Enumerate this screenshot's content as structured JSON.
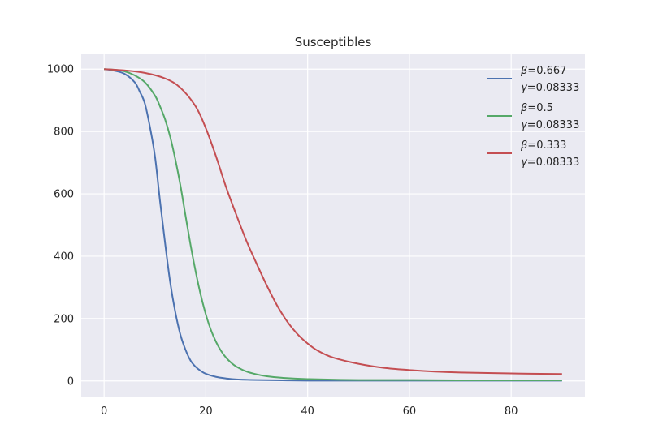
{
  "chart_data": {
    "type": "line",
    "title": "Susceptibles",
    "xlabel": "",
    "ylabel": "",
    "xlim": [
      -4.5,
      94.5
    ],
    "ylim": [
      -50,
      1050
    ],
    "xticks": [
      0,
      20,
      40,
      60,
      80
    ],
    "yticks": [
      0,
      200,
      400,
      600,
      800,
      1000
    ],
    "grid": true,
    "legend_position": "top-right",
    "background": "#EAEAF2",
    "series": [
      {
        "beta": "0.667",
        "gamma": "0.08333",
        "color": "#4C72B0",
        "x": [
          0,
          2,
          4,
          6,
          7,
          8,
          9,
          10,
          11,
          12,
          13,
          14,
          15,
          16,
          17,
          18,
          19,
          20,
          22,
          24,
          26,
          30,
          35,
          40,
          50,
          60,
          70,
          80,
          90
        ],
        "y": [
          1000,
          995,
          985,
          958,
          928,
          890,
          815,
          720,
          575,
          440,
          315,
          220,
          148,
          100,
          65,
          45,
          32,
          23,
          13,
          8,
          5,
          3,
          2,
          1,
          1,
          1,
          1,
          1,
          1
        ]
      },
      {
        "beta": "0.5",
        "gamma": "0.08333",
        "color": "#55A868",
        "x": [
          0,
          2,
          4,
          6,
          8,
          10,
          11,
          12,
          13,
          14,
          15,
          16,
          17,
          18,
          19,
          20,
          21,
          22,
          23,
          24,
          25,
          26,
          28,
          30,
          32,
          35,
          40,
          50,
          60,
          70,
          80,
          90
        ],
        "y": [
          1000,
          998,
          993,
          980,
          958,
          915,
          880,
          838,
          782,
          710,
          627,
          530,
          435,
          350,
          275,
          213,
          163,
          125,
          96,
          74,
          58,
          46,
          30,
          21,
          15,
          10,
          6,
          3,
          3,
          2,
          2,
          2
        ]
      },
      {
        "beta": "0.333",
        "gamma": "0.08333",
        "color": "#C44E52",
        "x": [
          0,
          4,
          8,
          12,
          15,
          18,
          20,
          22,
          24,
          26,
          28,
          30,
          32,
          34,
          36,
          38,
          40,
          42,
          45,
          50,
          55,
          60,
          65,
          70,
          80,
          90
        ],
        "y": [
          1000,
          996,
          988,
          970,
          940,
          880,
          810,
          720,
          620,
          532,
          448,
          375,
          305,
          242,
          190,
          150,
          120,
          97,
          75,
          55,
          42,
          35,
          30,
          27,
          24,
          22
        ]
      }
    ]
  }
}
